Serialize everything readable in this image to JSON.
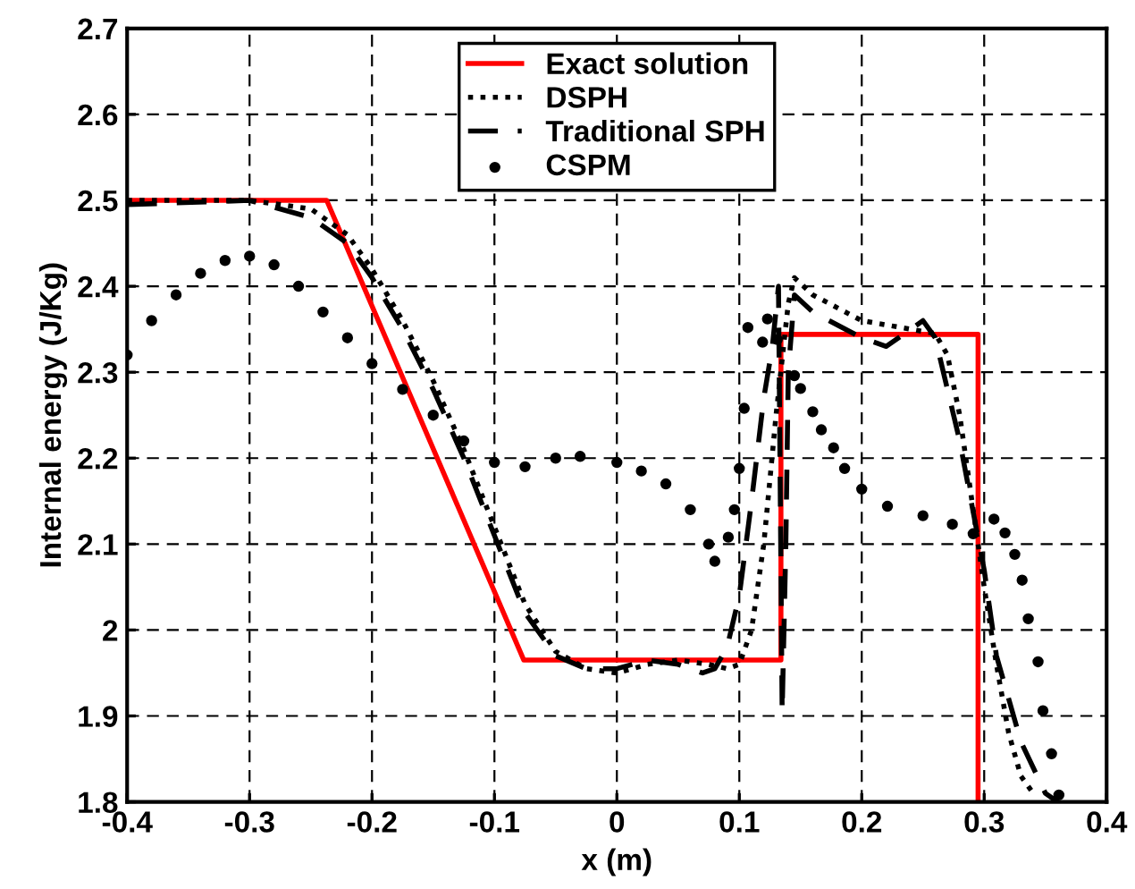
{
  "chart_data": {
    "type": "line",
    "xlabel": "x (m)",
    "ylabel": "Internal energy (J/Kg)",
    "xlim": [
      -0.4,
      0.4
    ],
    "xticks": [
      -0.4,
      -0.3,
      -0.2,
      -0.1,
      0,
      0.1,
      0.2,
      0.3,
      0.4
    ],
    "ylim": [
      1.8,
      2.7
    ],
    "yticks": [
      1.8,
      1.9,
      2,
      2.1,
      2.2,
      2.3,
      2.4,
      2.5,
      2.6,
      2.7
    ],
    "grid": true,
    "legend": "top",
    "series": [
      {
        "name": "Exact solution",
        "color": "#ff0000",
        "line_style": "solid",
        "x": [
          -0.4,
          -0.237,
          -0.076,
          0.134,
          0.134,
          0.295,
          0.295
        ],
        "values": [
          2.5,
          2.5,
          1.965,
          1.965,
          2.344,
          2.344,
          1.8
        ]
      },
      {
        "name": "DSPH",
        "color": "#000000",
        "line_style": "dotted",
        "x": [
          -0.4,
          -0.3,
          -0.25,
          -0.22,
          -0.2,
          -0.175,
          -0.15,
          -0.125,
          -0.1,
          -0.075,
          -0.05,
          -0.025,
          0,
          0.025,
          0.05,
          0.075,
          0.09,
          0.1,
          0.11,
          0.12,
          0.13,
          0.14,
          0.145,
          0.16,
          0.2,
          0.24,
          0.26,
          0.27,
          0.28,
          0.29,
          0.3,
          0.31,
          0.32,
          0.33,
          0.34
        ],
        "values": [
          2.5,
          2.5,
          2.49,
          2.46,
          2.42,
          2.36,
          2.29,
          2.21,
          2.12,
          2.03,
          1.975,
          1.955,
          1.95,
          1.96,
          1.965,
          1.96,
          1.955,
          1.96,
          2.0,
          2.1,
          2.25,
          2.38,
          2.41,
          2.39,
          2.36,
          2.35,
          2.345,
          2.32,
          2.25,
          2.15,
          2.05,
          1.96,
          1.88,
          1.83,
          1.81
        ]
      },
      {
        "name": "Traditional SPH",
        "color": "#000000",
        "line_style": "dashed",
        "x": [
          -0.4,
          -0.3,
          -0.25,
          -0.22,
          -0.2,
          -0.175,
          -0.15,
          -0.125,
          -0.1,
          -0.075,
          -0.05,
          -0.025,
          0,
          0.025,
          0.05,
          0.07,
          0.08,
          0.09,
          0.1,
          0.11,
          0.12,
          0.127,
          0.132,
          0.135,
          0.138,
          0.14,
          0.145,
          0.16,
          0.2,
          0.22,
          0.24,
          0.25,
          0.26,
          0.28,
          0.3,
          0.31,
          0.33,
          0.35,
          0.36
        ],
        "values": [
          2.495,
          2.5,
          2.48,
          2.45,
          2.41,
          2.35,
          2.28,
          2.2,
          2.11,
          2.02,
          1.97,
          1.955,
          1.955,
          1.965,
          1.96,
          1.95,
          1.955,
          1.98,
          2.04,
          2.15,
          2.27,
          2.33,
          2.4,
          1.905,
          2.1,
          2.3,
          2.39,
          2.37,
          2.34,
          2.33,
          2.35,
          2.36,
          2.34,
          2.22,
          2.07,
          1.97,
          1.87,
          1.81,
          1.8
        ]
      },
      {
        "name": "CSPM",
        "color": "#000000",
        "type": "scatter",
        "marker": "circle",
        "x": [
          -0.4,
          -0.38,
          -0.36,
          -0.34,
          -0.32,
          -0.3,
          -0.28,
          -0.26,
          -0.24,
          -0.22,
          -0.2,
          -0.175,
          -0.15,
          -0.125,
          -0.1,
          -0.075,
          -0.05,
          -0.03,
          0,
          0.02,
          0.04,
          0.06,
          0.075,
          0.08,
          0.091,
          0.096,
          0.1,
          0.104,
          0.107,
          0.119,
          0.123,
          0.131,
          0.145,
          0.15,
          0.16,
          0.167,
          0.177,
          0.186,
          0.2,
          0.221,
          0.25,
          0.274,
          0.291,
          0.308,
          0.317,
          0.325,
          0.331,
          0.336,
          0.344,
          0.348,
          0.355,
          0.361
        ],
        "values": [
          2.32,
          2.36,
          2.39,
          2.415,
          2.43,
          2.435,
          2.425,
          2.4,
          2.37,
          2.34,
          2.31,
          2.28,
          2.25,
          2.22,
          2.195,
          2.19,
          2.2,
          2.202,
          2.195,
          2.185,
          2.17,
          2.14,
          2.1,
          2.08,
          2.108,
          2.14,
          2.188,
          2.258,
          2.352,
          2.335,
          2.362,
          2.338,
          2.296,
          2.281,
          2.254,
          2.233,
          2.212,
          2.188,
          2.164,
          2.144,
          2.133,
          2.123,
          2.112,
          2.129,
          2.113,
          2.088,
          2.058,
          2.013,
          1.963,
          1.906,
          1.856,
          1.808
        ]
      }
    ]
  }
}
